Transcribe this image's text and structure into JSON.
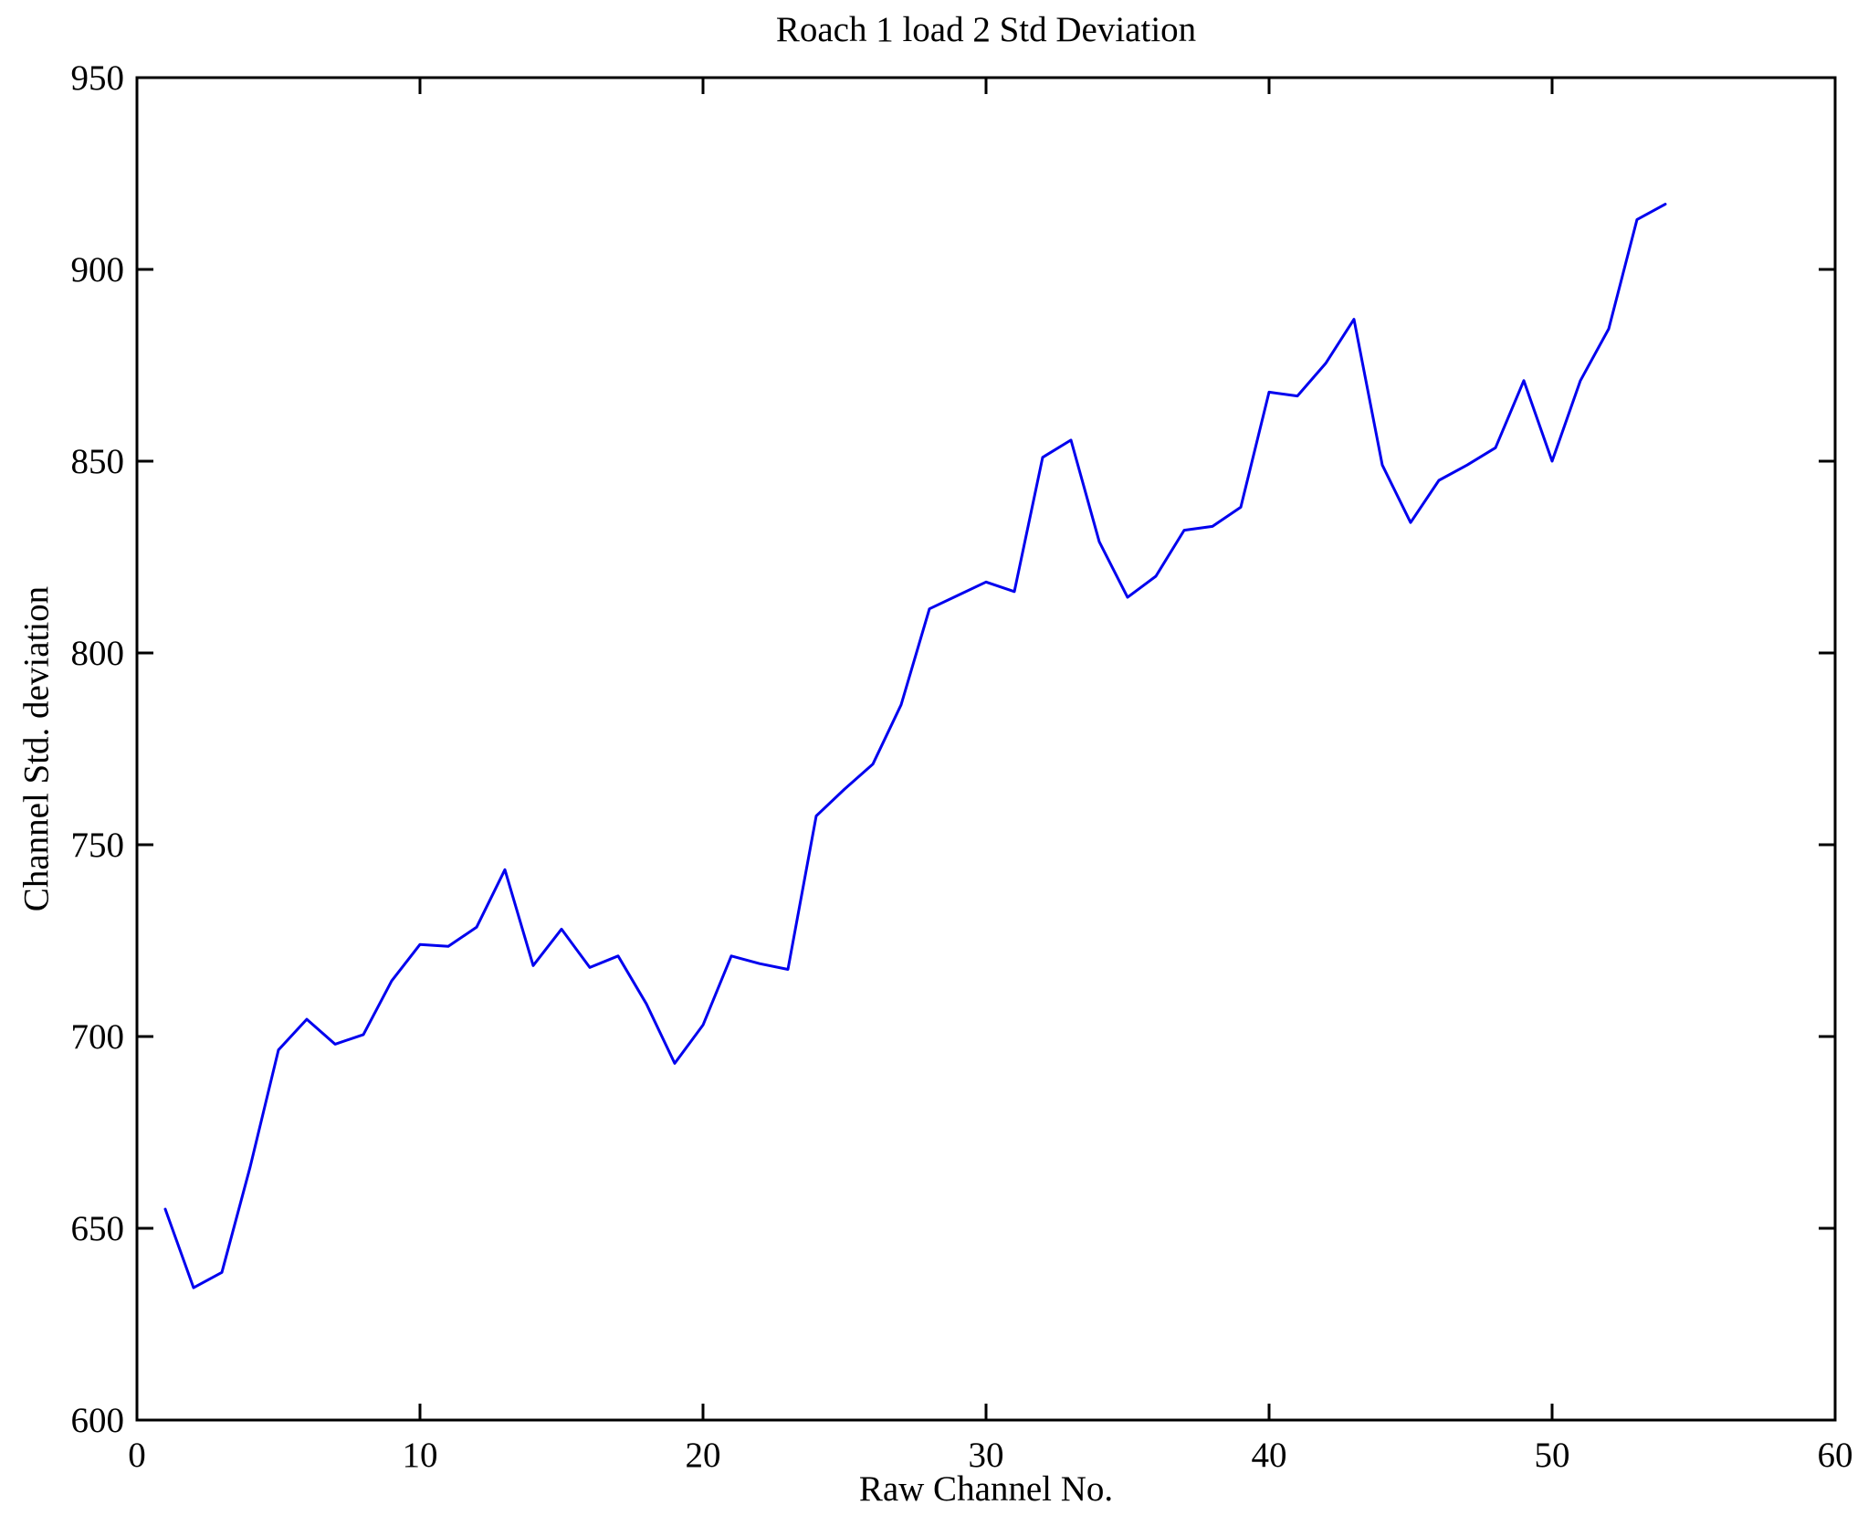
{
  "figure": {
    "background": "#ffffff",
    "axis_color": "#000000"
  },
  "chart_data": {
    "type": "line",
    "title": "Roach 1 load 2 Std Deviation",
    "xlabel": "Raw Channel No.",
    "ylabel": "Channel Std. deviation",
    "xlim": [
      0,
      60
    ],
    "ylim": [
      600,
      950
    ],
    "xticks": [
      0,
      10,
      20,
      30,
      40,
      50,
      60
    ],
    "yticks": [
      600,
      650,
      700,
      750,
      800,
      850,
      900,
      950
    ],
    "grid": false,
    "legend_position": "none",
    "line_color": "#0000EE",
    "series": [
      {
        "name": "channel-std-deviation",
        "x": [
          1,
          2,
          3,
          4,
          5,
          6,
          7,
          8,
          9,
          10,
          11,
          12,
          13,
          14,
          15,
          16,
          17,
          18,
          19,
          20,
          21,
          22,
          23,
          24,
          25,
          26,
          27,
          28,
          29,
          30,
          31,
          32,
          33,
          34,
          35,
          36,
          37,
          38,
          39,
          40,
          41,
          42,
          43,
          44,
          45,
          46,
          47,
          48,
          49,
          50,
          51,
          52,
          53,
          54
        ],
        "values": [
          655,
          634.5,
          638.5,
          666,
          696.5,
          704.5,
          698,
          700.5,
          714.5,
          724,
          723.5,
          728.5,
          743.5,
          718.5,
          728,
          718,
          721,
          708.5,
          693,
          703,
          721,
          719,
          717.5,
          757.5,
          764.5,
          771,
          786.5,
          811.5,
          815,
          818.5,
          816,
          851,
          855.5,
          829,
          814.5,
          820,
          832,
          833,
          838,
          868,
          867,
          875.5,
          887,
          849,
          834,
          845,
          849,
          853.5,
          871,
          850,
          871,
          884.5,
          913,
          917
        ]
      }
    ]
  }
}
